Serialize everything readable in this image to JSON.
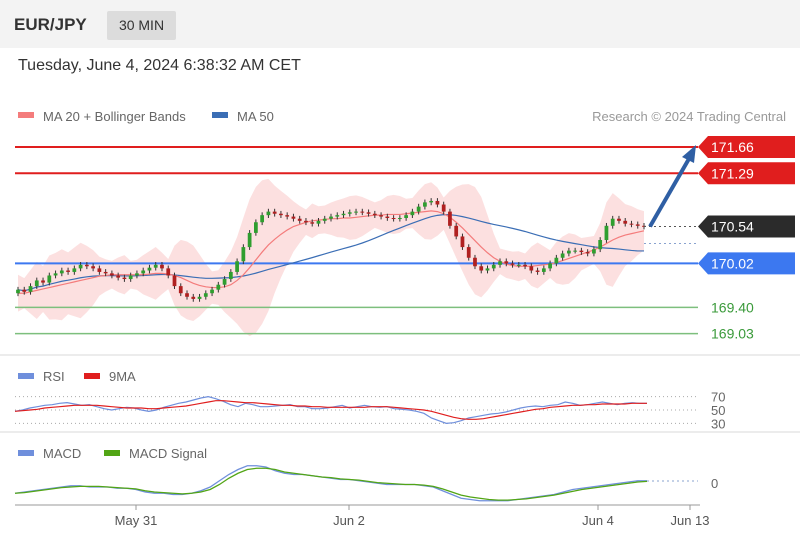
{
  "header": {
    "symbol": "EUR/JPY",
    "timeframe": "30 MIN"
  },
  "timestamp": "Tuesday, June 4, 2024 6:38:32 AM CET",
  "copyright": "Research © 2024 Trading Central",
  "colors": {
    "support": "#3c78f0",
    "resistance": "#e01e1e",
    "arrow": "#2f5fa4",
    "ma20": "#f47c7c",
    "ma50": "#3b6eb5",
    "rsi": "#6f8fdc",
    "rsi_ma": "#e01e1e",
    "macd": "#6f8fdc",
    "macd_signal": "#52a515",
    "green_level": "#7dbf7d",
    "bull": "#2f9e2f",
    "bear": "#b02020"
  },
  "chart_data": [
    {
      "type": "candlestick",
      "title": "EUR/JPY",
      "legend": [
        "MA 20 + Bollinger Bands",
        "MA 50"
      ],
      "legend_position": "top-left",
      "x_ticks": [
        "May 31",
        "Jun 2",
        "Jun 4",
        "Jun 13"
      ],
      "ylim": [
        168.8,
        171.9
      ],
      "last_price": 170.54,
      "resistance_levels": [
        171.66,
        171.29
      ],
      "support_levels": [
        170.02
      ],
      "minor_levels": [
        169.4,
        169.03
      ],
      "close": [
        169.65,
        169.62,
        169.7,
        169.78,
        169.75,
        169.85,
        169.88,
        169.92,
        169.9,
        169.95,
        170.0,
        169.98,
        169.95,
        169.9,
        169.88,
        169.85,
        169.82,
        169.8,
        169.85,
        169.88,
        169.92,
        169.96,
        170.0,
        169.95,
        169.85,
        169.7,
        169.6,
        169.55,
        169.52,
        169.55,
        169.6,
        169.65,
        169.72,
        169.8,
        169.9,
        170.05,
        170.25,
        170.45,
        170.6,
        170.7,
        170.75,
        170.72,
        170.7,
        170.68,
        170.65,
        170.62,
        170.6,
        170.58,
        170.62,
        170.65,
        170.68,
        170.7,
        170.72,
        170.74,
        170.75,
        170.74,
        170.72,
        170.7,
        170.68,
        170.66,
        170.65,
        170.66,
        170.7,
        170.75,
        170.82,
        170.88,
        170.9,
        170.85,
        170.75,
        170.55,
        170.4,
        170.25,
        170.1,
        169.98,
        169.92,
        169.95,
        170.0,
        170.05,
        170.02,
        170.0,
        170.0,
        169.98,
        169.92,
        169.9,
        169.95,
        170.02,
        170.1,
        170.16,
        170.2,
        170.2,
        170.18,
        170.16,
        170.22,
        170.35,
        170.55,
        170.65,
        170.62,
        170.58,
        170.57,
        170.55,
        170.54
      ],
      "ma20": [
        169.6,
        169.6,
        169.62,
        169.64,
        169.66,
        169.68,
        169.7,
        169.72,
        169.74,
        169.76,
        169.78,
        169.8,
        169.82,
        169.84,
        169.85,
        169.86,
        169.86,
        169.86,
        169.86,
        169.86,
        169.86,
        169.87,
        169.88,
        169.88,
        169.87,
        169.85,
        169.82,
        169.78,
        169.74,
        169.71,
        169.69,
        169.68,
        169.68,
        169.69,
        169.72,
        169.78,
        169.86,
        169.96,
        170.07,
        170.18,
        170.28,
        170.36,
        170.43,
        170.49,
        170.54,
        170.57,
        170.6,
        170.62,
        170.63,
        170.64,
        170.65,
        170.65,
        170.66,
        170.66,
        170.67,
        170.68,
        170.69,
        170.7,
        170.7,
        170.71,
        170.71,
        170.71,
        170.72,
        170.73,
        170.74,
        170.75,
        170.76,
        170.75,
        170.72,
        170.67,
        170.6,
        170.52,
        170.43,
        170.34,
        170.25,
        170.17,
        170.1,
        170.05,
        170.01,
        169.99,
        169.98,
        169.98,
        169.98,
        169.99,
        170.0,
        170.01,
        170.03,
        170.06,
        170.09,
        170.12,
        170.15,
        170.18,
        170.21,
        170.25,
        170.3,
        170.35,
        170.39,
        170.42,
        170.44,
        170.46,
        170.48
      ]
    },
    {
      "type": "line",
      "legend": [
        "RSI",
        "9MA"
      ],
      "legend_position": "top-left",
      "levels": [
        70,
        50,
        30
      ],
      "ylim": [
        20,
        80
      ],
      "series": [
        {
          "name": "RSI",
          "values": [
            48,
            50,
            53,
            55,
            57,
            58,
            60,
            61,
            59,
            57,
            58,
            55,
            52,
            50,
            52,
            54,
            53,
            50,
            48,
            50,
            54,
            57,
            60,
            62,
            65,
            68,
            70,
            67,
            63,
            58,
            55,
            60,
            58,
            55,
            55,
            56,
            57,
            58,
            55,
            55,
            52,
            52,
            53,
            55,
            57,
            53,
            55,
            57,
            55,
            54,
            55,
            52,
            51,
            50,
            48,
            45,
            38,
            34,
            30,
            31,
            34,
            38,
            40,
            42,
            44,
            45,
            47,
            50,
            53,
            55,
            56,
            55,
            57,
            58,
            62,
            60,
            57,
            58,
            60,
            62,
            60,
            58,
            60,
            61,
            60,
            60
          ]
        },
        {
          "name": "9MA",
          "values": [
            48,
            49,
            50,
            51,
            53,
            54,
            55,
            56,
            57,
            57,
            57,
            57,
            56,
            55,
            54,
            53,
            53,
            53,
            52,
            52,
            53,
            54,
            55,
            56,
            58,
            60,
            62,
            64,
            64,
            63,
            62,
            61,
            61,
            60,
            59,
            58,
            57,
            57,
            56,
            56,
            55,
            55,
            54,
            54,
            54,
            54,
            54,
            54,
            55,
            55,
            55,
            54,
            53,
            52,
            51,
            50,
            48,
            45,
            42,
            39,
            37,
            36,
            36,
            37,
            39,
            41,
            43,
            45,
            47,
            49,
            51,
            52,
            54,
            55,
            56,
            57,
            57,
            58,
            58,
            59,
            59,
            59,
            59,
            60,
            60,
            60
          ]
        }
      ]
    },
    {
      "type": "line",
      "legend": [
        "MACD",
        "MACD Signal"
      ],
      "legend_position": "top-left",
      "levels": [
        0
      ],
      "ylim": [
        -0.12,
        0.2
      ],
      "series": [
        {
          "name": "MACD",
          "values": [
            -0.05,
            -0.04,
            -0.03,
            -0.02,
            -0.01,
            0.0,
            0.01,
            0.01,
            0.0,
            0.0,
            0.0,
            -0.01,
            -0.01,
            -0.02,
            -0.04,
            -0.05,
            -0.05,
            -0.06,
            -0.06,
            -0.05,
            -0.03,
            0.0,
            0.05,
            0.1,
            0.14,
            0.17,
            0.17,
            0.16,
            0.13,
            0.11,
            0.1,
            0.1,
            0.09,
            0.08,
            0.07,
            0.06,
            0.06,
            0.05,
            0.04,
            0.03,
            0.02,
            0.02,
            0.02,
            0.02,
            0.01,
            0.0,
            -0.03,
            -0.06,
            -0.09,
            -0.1,
            -0.11,
            -0.11,
            -0.11,
            -0.11,
            -0.1,
            -0.09,
            -0.08,
            -0.07,
            -0.06,
            -0.04,
            -0.02,
            -0.01,
            0.0,
            0.01,
            0.02,
            0.03,
            0.04,
            0.05,
            0.05
          ]
        },
        {
          "name": "MACD Signal",
          "values": [
            -0.05,
            -0.045,
            -0.035,
            -0.025,
            -0.015,
            -0.005,
            0.0,
            0.005,
            0.005,
            0.005,
            0.0,
            -0.005,
            -0.01,
            -0.015,
            -0.03,
            -0.04,
            -0.045,
            -0.05,
            -0.055,
            -0.05,
            -0.04,
            -0.02,
            0.02,
            0.07,
            0.11,
            0.14,
            0.15,
            0.15,
            0.14,
            0.12,
            0.11,
            0.1,
            0.09,
            0.08,
            0.075,
            0.065,
            0.06,
            0.055,
            0.045,
            0.035,
            0.03,
            0.025,
            0.02,
            0.02,
            0.015,
            0.005,
            -0.015,
            -0.04,
            -0.065,
            -0.08,
            -0.09,
            -0.1,
            -0.105,
            -0.105,
            -0.1,
            -0.095,
            -0.085,
            -0.075,
            -0.065,
            -0.05,
            -0.035,
            -0.02,
            -0.01,
            0.0,
            0.01,
            0.02,
            0.03,
            0.04,
            0.045
          ]
        }
      ]
    }
  ]
}
